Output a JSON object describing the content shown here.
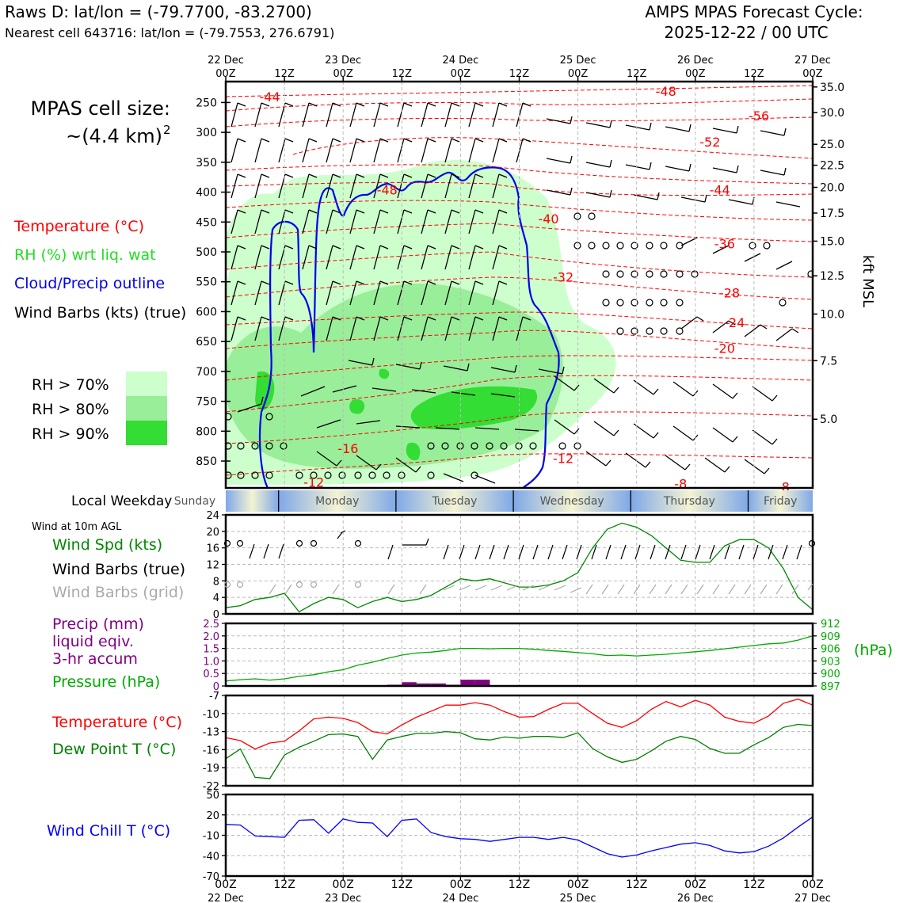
{
  "header": {
    "title_left": "Raws D: lat/lon = (-79.7700, -83.2700)",
    "subtitle_left": "Nearest cell 643716: lat/lon = (-79.7553, 276.6791)",
    "title_right_line1": "AMPS MPAS Forecast Cycle:",
    "title_right_line2": "2025-12-22 / 00 UTC"
  },
  "time_axis": {
    "top_dates": [
      "22 Dec",
      "23 Dec",
      "24 Dec",
      "25 Dec",
      "26 Dec",
      "27 Dec"
    ],
    "tick_labels": [
      "00Z",
      "12Z",
      "00Z",
      "12Z",
      "00Z",
      "12Z",
      "00Z",
      "12Z",
      "00Z",
      "12Z",
      "00Z"
    ],
    "bottom_dates": [
      "22 Dec",
      "23 Dec",
      "24 Dec",
      "25 Dec",
      "26 Dec",
      "27 Dec"
    ],
    "hours_range": [
      0,
      120
    ]
  },
  "side_labels": {
    "cell_size_line1": "MPAS cell size:",
    "cell_size_value": "~(4.4 km)",
    "cell_size_exp": "2",
    "temperature": "Temperature (°C)",
    "rh": "RH (%) wrt liq. wat",
    "cloud": "Cloud/Precip outline",
    "wind_barbs": "Wind Barbs (kts) (true)",
    "rh70": "RH > 70%",
    "rh80": "RH > 80%",
    "rh90": "RH > 90%",
    "local_weekday": "Local Weekday",
    "wind_10m": "Wind at 10m AGL",
    "wind_spd": "Wind Spd (kts)",
    "wind_barbs_true": "Wind Barbs (true)",
    "wind_barbs_grid": "Wind Barbs (grid)",
    "precip_line1": "Precip (mm)",
    "precip_line2": "liquid eqiv.",
    "precip_line3": "3-hr accum",
    "pressure": "Pressure (hPa)",
    "pressure_unit": "(hPa)",
    "temp2": "Temperature (°C)",
    "dewpoint": "Dew Point T (°C)",
    "windchill": "Wind Chill T (°C)",
    "kft_label": "kft MSL"
  },
  "colors": {
    "temperature": "#ff0000",
    "rh_label": "#22dd22",
    "rh70": "#ccffcc",
    "rh80": "#99ee99",
    "rh90": "#33dd33",
    "cloud": "#0000ee",
    "wind_spd": "#008800",
    "precip": "#800080",
    "pressure": "#00aa00",
    "dewpoint": "#008000",
    "windchill": "#0000ff",
    "grid_barbs": "#aaaaaa"
  },
  "weekdays": [
    "Sunday",
    "Monday",
    "Tuesday",
    "Wednesday",
    "Thursday",
    "Friday"
  ],
  "chart_data": [
    {
      "type": "contour",
      "name": "time-height cross section",
      "y_axis_left": {
        "label": "pressure (hPa)",
        "ticks": [
          250,
          300,
          350,
          400,
          450,
          500,
          550,
          600,
          650,
          700,
          750,
          800,
          850
        ],
        "range": [
          215,
          895
        ]
      },
      "y_axis_right": {
        "label": "kft MSL",
        "ticks": [
          "35.0",
          "30.0",
          "25.0",
          "22.5",
          "20.0",
          "17.5",
          "15.0",
          "12.5",
          "10.0",
          "7.5",
          "5.0"
        ],
        "tick_pressures": [
          224,
          267,
          320,
          355,
          392,
          435,
          482,
          540,
          604,
          682,
          780
        ]
      },
      "temperature_contour_labels": [
        {
          "text": "-44",
          "hour": 9,
          "p": 240
        },
        {
          "text": "-48",
          "hour": 90,
          "p": 231
        },
        {
          "text": "-56",
          "hour": 109,
          "p": 272
        },
        {
          "text": "-52",
          "hour": 99,
          "p": 316
        },
        {
          "text": "-48",
          "hour": 33,
          "p": 396
        },
        {
          "text": "-44",
          "hour": 101,
          "p": 396
        },
        {
          "text": "-40",
          "hour": 66,
          "p": 444
        },
        {
          "text": "-36",
          "hour": 102,
          "p": 486
        },
        {
          "text": "-32",
          "hour": 69,
          "p": 542
        },
        {
          "text": "-28",
          "hour": 103,
          "p": 568
        },
        {
          "text": "-24",
          "hour": 104,
          "p": 618
        },
        {
          "text": "-20",
          "hour": 102,
          "p": 661
        },
        {
          "text": "-16",
          "hour": 25,
          "p": 829
        },
        {
          "text": "-12",
          "hour": 69,
          "p": 845
        },
        {
          "text": "-12",
          "hour": 18,
          "p": 885
        },
        {
          "text": "-8",
          "hour": 93,
          "p": 888
        },
        {
          "text": "-8",
          "hour": 114,
          "p": 893
        }
      ]
    },
    {
      "type": "line",
      "name": "Wind Spd (kts)",
      "x_hours": [
        0,
        3,
        6,
        9,
        12,
        15,
        18,
        21,
        24,
        27,
        30,
        33,
        36,
        39,
        42,
        45,
        48,
        51,
        54,
        57,
        60,
        63,
        66,
        69,
        72,
        75,
        78,
        81,
        84,
        87,
        90,
        93,
        96,
        99,
        102,
        105,
        108,
        111,
        114,
        117,
        120
      ],
      "series": [
        {
          "name": "Wind Spd (kts)",
          "values": [
            1.5,
            2,
            3.5,
            4,
            5,
            0.5,
            2.5,
            4,
            3.5,
            1.5,
            3,
            4,
            3,
            3.5,
            4.5,
            6.5,
            8.5,
            8,
            8.5,
            7.5,
            6.5,
            6.5,
            7,
            8,
            10,
            16,
            20.5,
            22,
            21,
            19,
            16,
            13,
            12.5,
            12.5,
            16.5,
            18,
            18,
            16,
            11,
            4,
            1
          ]
        }
      ],
      "ylim": [
        0,
        24
      ],
      "yticks": [
        0,
        4,
        8,
        12,
        16,
        20,
        24
      ]
    },
    {
      "type": "bar+line",
      "name": "Precip (mm) and Pressure (hPa)",
      "precip": {
        "x_hours": [
          33,
          36,
          39,
          42,
          45,
          48,
          51
        ],
        "values": [
          0.05,
          0.15,
          0.1,
          0.1,
          0.05,
          0.25,
          0.25
        ],
        "ylim": [
          0,
          2.5
        ],
        "yticks": [
          "0",
          "0.5",
          "1.0",
          "1.5",
          "2.0",
          "2.5"
        ]
      },
      "pressure": {
        "x_hours": [
          0,
          3,
          6,
          9,
          12,
          15,
          18,
          21,
          24,
          27,
          30,
          33,
          36,
          39,
          42,
          45,
          48,
          51,
          54,
          57,
          60,
          63,
          66,
          69,
          72,
          75,
          78,
          81,
          84,
          87,
          90,
          93,
          96,
          99,
          102,
          105,
          108,
          111,
          114,
          117,
          120
        ],
        "values": [
          898.2,
          898.5,
          898.7,
          898.4,
          898.7,
          899.3,
          899.7,
          900.4,
          900.9,
          902.0,
          902.7,
          903.6,
          904.4,
          904.9,
          905.1,
          905.5,
          906.0,
          906.0,
          905.9,
          906.0,
          906.0,
          905.8,
          905.5,
          905.3,
          905.0,
          904.7,
          904.3,
          904.4,
          904.2,
          904.4,
          904.6,
          904.9,
          905.2,
          905.5,
          905.9,
          906.3,
          906.7,
          907.1,
          907.3,
          908.0,
          909.0
        ],
        "ylim": [
          897,
          912
        ],
        "yticks": [
          "912",
          "909",
          "906",
          "903",
          "900",
          "897"
        ]
      }
    },
    {
      "type": "line",
      "name": "Temperature and Dew Point (°C)",
      "x_hours": [
        0,
        3,
        6,
        9,
        12,
        15,
        18,
        21,
        24,
        27,
        30,
        33,
        36,
        39,
        42,
        45,
        48,
        51,
        54,
        57,
        60,
        63,
        66,
        69,
        72,
        75,
        78,
        81,
        84,
        87,
        90,
        93,
        96,
        99,
        102,
        105,
        108,
        111,
        114,
        117,
        120
      ],
      "series": [
        {
          "name": "Temperature (°C)",
          "values": [
            -14,
            -14.5,
            -15.9,
            -14.9,
            -14.6,
            -12.9,
            -10.9,
            -10.6,
            -10.8,
            -11.5,
            -13,
            -13.4,
            -11.9,
            -10.6,
            -9.6,
            -8.6,
            -8.6,
            -8.2,
            -8.6,
            -9.7,
            -10.6,
            -10.5,
            -9.3,
            -8.3,
            -8.3,
            -10,
            -11.6,
            -12.3,
            -11.2,
            -9.3,
            -8,
            -8.9,
            -7.8,
            -8.6,
            -10.6,
            -11.3,
            -11.6,
            -10.4,
            -8.3,
            -7.6,
            -8.6
          ]
        },
        {
          "name": "Dew Point T (°C)",
          "values": [
            -17.5,
            -15.9,
            -20.6,
            -20.8,
            -16.9,
            -15.6,
            -14.6,
            -13.5,
            -13.4,
            -13.8,
            -17.6,
            -14.4,
            -13.8,
            -13.3,
            -13.3,
            -13.0,
            -13.2,
            -14.2,
            -14.4,
            -13.9,
            -14.1,
            -13.8,
            -13.8,
            -14,
            -13.2,
            -15.8,
            -17.2,
            -18.1,
            -17.6,
            -16.2,
            -14.6,
            -13.8,
            -14.3,
            -15.8,
            -16.6,
            -16.6,
            -15.2,
            -14,
            -12.3,
            -11.8,
            -12
          ]
        }
      ],
      "ylim": [
        -22,
        -7
      ],
      "yticks": [
        -7,
        -10,
        -13,
        -16,
        -19,
        -22
      ]
    },
    {
      "type": "line",
      "name": "Wind Chill T (°C)",
      "x_hours": [
        0,
        3,
        6,
        9,
        12,
        15,
        18,
        21,
        24,
        27,
        30,
        33,
        36,
        39,
        42,
        45,
        48,
        51,
        54,
        57,
        60,
        63,
        66,
        69,
        72,
        75,
        78,
        81,
        84,
        87,
        90,
        93,
        96,
        99,
        102,
        105,
        108,
        111,
        114,
        117,
        120
      ],
      "series": [
        {
          "name": "Wind Chill T (°C)",
          "values": [
            6,
            5,
            -11,
            -12,
            -13,
            12,
            13,
            -7,
            14,
            9,
            8,
            -12,
            12,
            14,
            -6,
            -12,
            -15,
            -16,
            -19,
            -16,
            -13,
            -13,
            -16,
            -13,
            -17,
            -27,
            -37,
            -42,
            -39,
            -33,
            -28,
            -23,
            -21,
            -25,
            -33,
            -36,
            -34,
            -26,
            -14,
            2,
            17
          ]
        }
      ],
      "ylim": [
        -70,
        50
      ],
      "yticks": [
        50,
        20,
        -10,
        -40,
        -70
      ]
    }
  ]
}
